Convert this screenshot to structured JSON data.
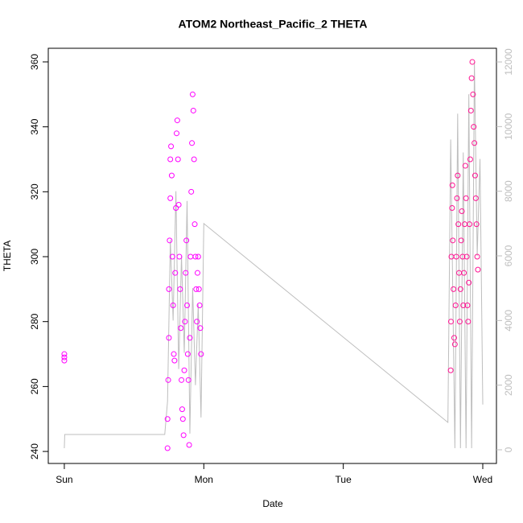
{
  "chart_data": {
    "type": "scatter",
    "title": "ATOM2 Northeast_Pacific_2 THETA",
    "x_label": "Date",
    "y_label": "THETA",
    "xlim": [
      -0.115,
      3.098
    ],
    "xticks": [
      {
        "value": 0,
        "label": "Sun"
      },
      {
        "value": 1,
        "label": "Mon"
      },
      {
        "value": 2,
        "label": "Tue"
      },
      {
        "value": 3,
        "label": "Wed"
      }
    ],
    "ylim": [
      236.3,
      364.2
    ],
    "yticks": [
      240,
      260,
      280,
      300,
      320,
      340,
      360
    ],
    "y2lim": [
      -423,
      12423
    ],
    "y2ticks": [
      0,
      2000,
      4000,
      6000,
      8000,
      10000,
      12000
    ],
    "y2color": "#bebebe",
    "series": [
      {
        "type": "line",
        "axis": "y2",
        "color": "#bebebe",
        "x": [
          0,
          0.003,
          0.72,
          0.74,
          0.76,
          0.78,
          0.8,
          0.82,
          0.84,
          0.86,
          0.88,
          0.9,
          0.92,
          0.94,
          0.96,
          0.98,
          1.0,
          2.75,
          2.77,
          2.8,
          2.82,
          2.84,
          2.86,
          2.88,
          2.9,
          2.92,
          2.94,
          2.96,
          2.98,
          3.0
        ],
        "values": [
          50,
          473,
          473,
          1500,
          6500,
          4000,
          8000,
          2500,
          6000,
          3000,
          7700,
          500,
          5000,
          2000,
          4500,
          1000,
          7000,
          847,
          9600,
          50,
          10400,
          50,
          9200,
          50,
          11000,
          50,
          12000,
          6000,
          9000,
          1400
        ]
      },
      {
        "type": "scatter",
        "color": "#ff00ff",
        "x": [
          0,
          0,
          0,
          0.74,
          0.74,
          0.745,
          0.75,
          0.75,
          0.755,
          0.76,
          0.76,
          0.765,
          0.77,
          0.775,
          0.78,
          0.785,
          0.79,
          0.795,
          0.8,
          0.805,
          0.81,
          0.815,
          0.82,
          0.825,
          0.83,
          0.835,
          0.84,
          0.845,
          0.85,
          0.855,
          0.86,
          0.865,
          0.87,
          0.875,
          0.88,
          0.885,
          0.89,
          0.895,
          0.9,
          0.905,
          0.91,
          0.915,
          0.92,
          0.925,
          0.93,
          0.935,
          0.94,
          0.945,
          0.95,
          0.955,
          0.96,
          0.965,
          0.97,
          0.975,
          0.98
        ],
        "values": [
          268,
          269,
          270,
          241,
          250,
          262,
          275,
          290,
          305,
          318,
          330,
          334,
          325,
          300,
          285,
          270,
          268,
          295,
          315,
          338,
          342,
          330,
          316,
          300,
          290,
          278,
          262,
          253,
          250,
          245,
          265,
          280,
          295,
          305,
          285,
          270,
          262,
          242,
          275,
          300,
          320,
          335,
          350,
          345,
          330,
          310,
          300,
          290,
          280,
          295,
          300,
          290,
          285,
          278,
          270
        ]
      },
      {
        "type": "scatter",
        "color": "#ff1493",
        "x": [
          2.77,
          2.772,
          2.775,
          2.78,
          2.782,
          2.785,
          2.79,
          2.795,
          2.8,
          2.805,
          2.81,
          2.815,
          2.82,
          2.825,
          2.83,
          2.835,
          2.84,
          2.845,
          2.85,
          2.855,
          2.86,
          2.865,
          2.87,
          2.875,
          2.88,
          2.885,
          2.89,
          2.895,
          2.9,
          2.905,
          2.91,
          2.915,
          2.92,
          2.925,
          2.93,
          2.935,
          2.94,
          2.945,
          2.95,
          2.955,
          2.96,
          2.965
        ],
        "values": [
          265,
          280,
          300,
          315,
          322,
          305,
          290,
          275,
          273,
          285,
          300,
          318,
          325,
          310,
          295,
          280,
          290,
          305,
          314,
          300,
          285,
          295,
          310,
          328,
          318,
          300,
          285,
          280,
          292,
          310,
          330,
          345,
          355,
          360,
          350,
          340,
          335,
          325,
          318,
          310,
          300,
          296
        ]
      }
    ]
  }
}
